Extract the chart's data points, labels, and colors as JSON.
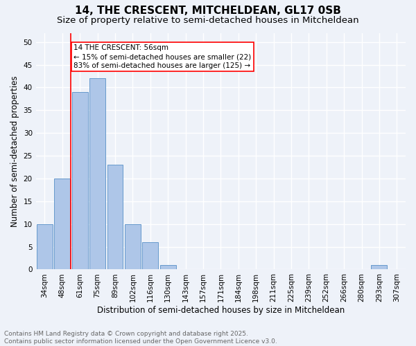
{
  "title": "14, THE CRESCENT, MITCHELDEAN, GL17 0SB",
  "subtitle": "Size of property relative to semi-detached houses in Mitcheldean",
  "xlabel": "Distribution of semi-detached houses by size in Mitcheldean",
  "ylabel": "Number of semi-detached properties",
  "categories": [
    "34sqm",
    "48sqm",
    "61sqm",
    "75sqm",
    "89sqm",
    "102sqm",
    "116sqm",
    "130sqm",
    "143sqm",
    "157sqm",
    "171sqm",
    "184sqm",
    "198sqm",
    "211sqm",
    "225sqm",
    "239sqm",
    "252sqm",
    "266sqm",
    "280sqm",
    "293sqm",
    "307sqm"
  ],
  "values": [
    10,
    20,
    39,
    42,
    23,
    10,
    6,
    1,
    0,
    0,
    0,
    0,
    0,
    0,
    0,
    0,
    0,
    0,
    0,
    1,
    0
  ],
  "bar_color": "#aec6e8",
  "bar_edge_color": "#6699cc",
  "vline_x_index": 1.5,
  "vline_color": "red",
  "annotation_title": "14 THE CRESCENT: 56sqm",
  "annotation_line1": "← 15% of semi-detached houses are smaller (22)",
  "annotation_line2": "83% of semi-detached houses are larger (125) →",
  "annotation_box_color": "red",
  "ylim": [
    0,
    52
  ],
  "yticks": [
    0,
    5,
    10,
    15,
    20,
    25,
    30,
    35,
    40,
    45,
    50
  ],
  "footnote_line1": "Contains HM Land Registry data © Crown copyright and database right 2025.",
  "footnote_line2": "Contains public sector information licensed under the Open Government Licence v3.0.",
  "bg_color": "#eef2f9",
  "grid_color": "#ffffff",
  "title_fontsize": 11,
  "subtitle_fontsize": 9.5,
  "axis_label_fontsize": 8.5,
  "tick_fontsize": 7.5,
  "annotation_fontsize": 7.5,
  "footnote_fontsize": 6.5
}
